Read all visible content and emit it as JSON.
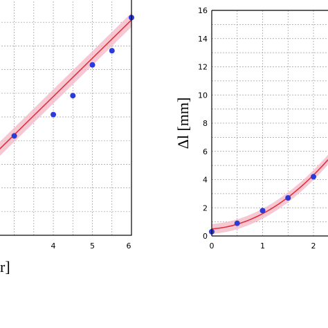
{
  "chart_data": [
    {
      "type": "scatter",
      "title": "",
      "xlabel": "r]",
      "ylabel": "",
      "xlim": [
        2.6,
        6.0
      ],
      "ylim": [
        0,
        1.0
      ],
      "grid": true,
      "x_ticks": [
        "4",
        "5",
        "6"
      ],
      "series": [
        {
          "kind": "points",
          "color": "#2a3bd8",
          "x": [
            3.0,
            4.0,
            4.5,
            5.0,
            5.5,
            6.0
          ],
          "y": [
            0.42,
            0.51,
            0.59,
            0.72,
            0.78,
            0.92
          ]
        },
        {
          "kind": "fit-line",
          "color": "#e0303a",
          "x": [
            2.6,
            6.0
          ],
          "y": [
            0.36,
            0.91
          ]
        },
        {
          "kind": "confidence-band",
          "color": "#f3b6c6",
          "halfwidth": 0.03
        }
      ]
    },
    {
      "type": "scatter",
      "title": "",
      "xlabel": "",
      "ylabel": "Δl [mm]",
      "xlim": [
        0,
        2.35
      ],
      "ylim": [
        0,
        16
      ],
      "grid": true,
      "x_ticks": [
        "0",
        "1",
        "2"
      ],
      "y_ticks": [
        "0",
        "2",
        "4",
        "6",
        "8",
        "10",
        "12",
        "14",
        "16"
      ],
      "series": [
        {
          "kind": "points",
          "color": "#2a3bd8",
          "x": [
            0,
            0.5,
            1.0,
            1.5,
            2.0
          ],
          "y": [
            0.3,
            0.9,
            1.8,
            2.7,
            4.2
          ]
        },
        {
          "kind": "fit-curve",
          "color": "#e0303a",
          "coeffs": [
            0.5,
            0.25,
            0.83
          ]
        },
        {
          "kind": "confidence-band",
          "color": "#f3b6c6",
          "halfwidth": 0.35
        }
      ]
    }
  ]
}
